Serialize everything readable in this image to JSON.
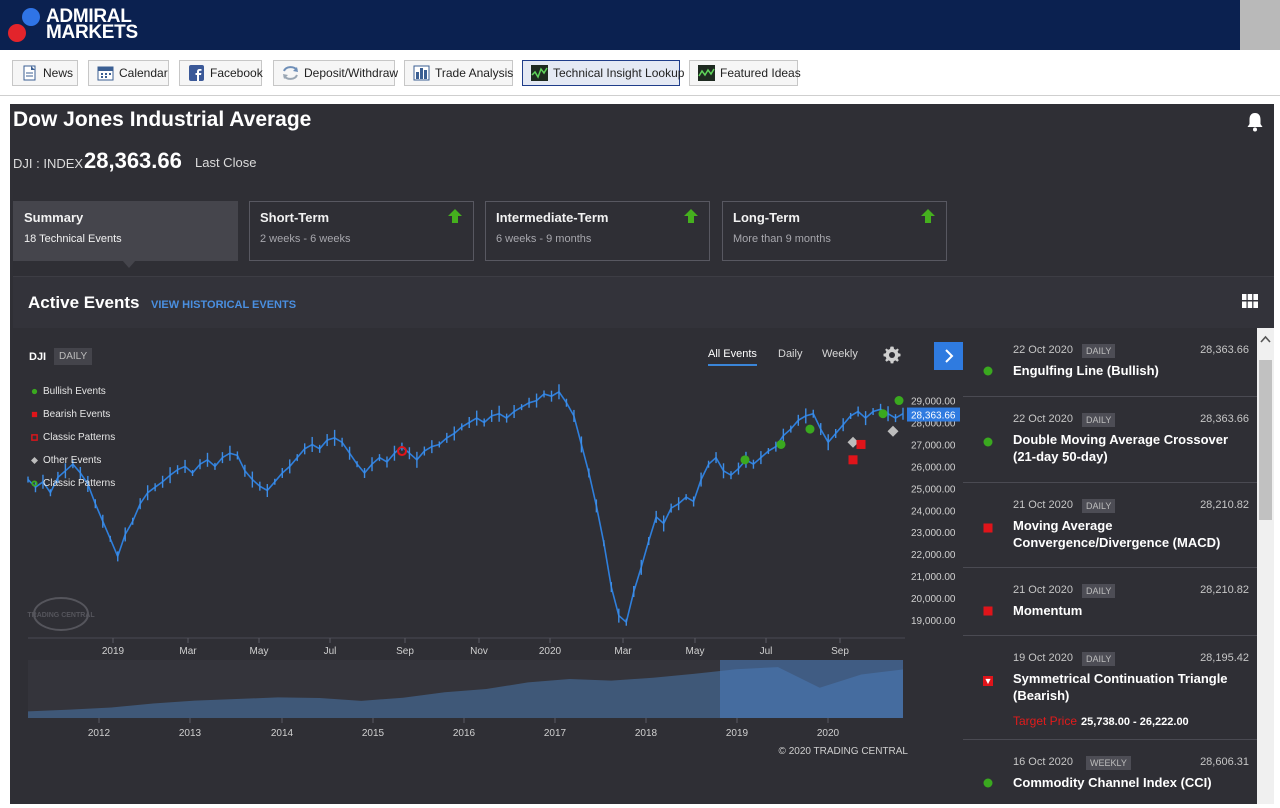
{
  "brand": {
    "line1": "ADMIRAL",
    "line2": "MARKETS",
    "colors": {
      "bar": "#0b2150",
      "dot_blue": "#2f74e6",
      "dot_red": "#e3242b"
    }
  },
  "toolbar": {
    "buttons": [
      {
        "label": "News",
        "icon": "document-icon"
      },
      {
        "label": "Calendar",
        "icon": "calendar-icon"
      },
      {
        "label": "Facebook",
        "icon": "facebook-icon"
      },
      {
        "label": "Deposit/Withdraw",
        "icon": "transfer-icon"
      },
      {
        "label": "Trade Analysis",
        "icon": "bar-chart-icon"
      },
      {
        "label": "Technical Insight Lookup",
        "icon": "chart-icon",
        "active": true
      },
      {
        "label": "Featured Ideas",
        "icon": "chart-icon"
      }
    ]
  },
  "instrument": {
    "title": "Dow Jones Industrial Average",
    "ticker": "DJI : INDEX",
    "price": "28,363.66",
    "price_label": "Last Close"
  },
  "tabs": [
    {
      "name": "Summary",
      "sub": "18 Technical Events",
      "selected": true
    },
    {
      "name": "Short-Term",
      "sub": "2 weeks - 6 weeks",
      "trend": "up"
    },
    {
      "name": "Intermediate-Term",
      "sub": "6 weeks - 9 months",
      "trend": "up"
    },
    {
      "name": "Long-Term",
      "sub": "More than 9 months",
      "trend": "up"
    }
  ],
  "events_header": {
    "title": "Active Events",
    "link": "VIEW HISTORICAL EVENTS"
  },
  "chart_controls": {
    "symbol": "DJI",
    "interval": "DAILY",
    "periods": [
      "All Events",
      "Daily",
      "Weekly"
    ],
    "active_period": "All Events"
  },
  "legend": [
    {
      "label": "Bullish Events",
      "shape": "circle",
      "color": "#3aa91f"
    },
    {
      "label": "Bearish Events",
      "shape": "square",
      "color": "#e0141a"
    },
    {
      "label": "Classic Patterns",
      "shape": "square-outline",
      "color": "#e0141a"
    },
    {
      "label": "Other Events",
      "shape": "diamond",
      "color": "#bdbdbd"
    },
    {
      "label": "Classic Patterns",
      "shape": "circle-outline",
      "color": "#3aa91f"
    }
  ],
  "chart_data": {
    "type": "line",
    "title": "",
    "xlabel": "",
    "ylabel": "",
    "y_ticks": [
      "29,000.00",
      "28,000.00",
      "27,000.00",
      "26,000.00",
      "25,000.00",
      "24,000.00",
      "23,000.00",
      "22,000.00",
      "21,000.00",
      "20,000.00",
      "19,000.00"
    ],
    "ylim": [
      18500,
      29800
    ],
    "x_ticks": [
      "2019",
      "Mar",
      "May",
      "Jul",
      "Sep",
      "Nov",
      "2020",
      "Mar",
      "May",
      "Jul",
      "Sep"
    ],
    "last_price_label": "28,363.66",
    "series": [
      {
        "values": [
          25400,
          25050,
          25300,
          24800,
          25500,
          25800,
          26100,
          25700,
          25200,
          24300,
          23500,
          22700,
          21900,
          22900,
          23500,
          24300,
          24800,
          25050,
          25300,
          25600,
          25850,
          26000,
          25700,
          26100,
          26300,
          26000,
          26400,
          26600,
          26500,
          25800,
          25400,
          25100,
          24900,
          25300,
          25700,
          26000,
          26400,
          26800,
          27000,
          26800,
          27200,
          27300,
          27100,
          26600,
          26100,
          25700,
          26100,
          26400,
          26200,
          26600,
          26900,
          26600,
          26300,
          26700,
          26900,
          27000,
          27300,
          27500,
          27800,
          28000,
          28200,
          28000,
          28300,
          28400,
          28200,
          28500,
          28700,
          28900,
          29000,
          29300,
          29200,
          29400,
          28900,
          28300,
          27000,
          25700,
          24200,
          22500,
          20500,
          19200,
          18900,
          20300,
          21400,
          22600,
          23700,
          23400,
          24100,
          24300,
          24600,
          24400,
          25400,
          26100,
          26400,
          25800,
          25600,
          25900,
          26300,
          26100,
          26400,
          26700,
          26900,
          27400,
          27700,
          28100,
          28300,
          28400,
          27700,
          27100,
          27500,
          27900,
          28300,
          28500,
          28200,
          28500,
          28600,
          28400,
          28200,
          28400
        ]
      }
    ],
    "events": [
      {
        "type": "Classic Patterns",
        "date": "Sep 2019",
        "value": 26700
      },
      {
        "type": "Bullish Events",
        "date": "Jun 2020",
        "value": 26300
      },
      {
        "type": "Bullish Events",
        "date": "Jul 2020",
        "value": 27000
      },
      {
        "type": "Bullish Events",
        "date": "Aug 2020",
        "value": 27700
      },
      {
        "type": "Bearish Events",
        "date": "Sep 2020",
        "value": 26300
      },
      {
        "type": "Other Events",
        "date": "Sep 2020",
        "value": 27100
      },
      {
        "type": "Bearish Events",
        "date": "Oct 2020",
        "value": 27000
      },
      {
        "type": "Other Events",
        "date": "Oct 2020",
        "value": 27600
      },
      {
        "type": "Bullish Events",
        "date": "Oct 2020",
        "value": 28400
      },
      {
        "type": "Bullish Events",
        "date": "Oct 2020",
        "value": 29000
      }
    ],
    "navigator_x_ticks": [
      "2012",
      "2013",
      "2014",
      "2015",
      "2016",
      "2017",
      "2018",
      "2019",
      "2020"
    ],
    "navigator_values": [
      12500,
      13200,
      14000,
      15500,
      16600,
      17200,
      17800,
      17600,
      16500,
      17700,
      19800,
      21000,
      23500,
      24800,
      24200,
      25300,
      26800,
      28500,
      29300,
      21500,
      26500,
      28400
    ]
  },
  "copyright": "© 2020 TRADING CENTRAL",
  "watermark": "TRADING CENTRAL",
  "event_list": [
    {
      "date": "22 Oct 2020",
      "freq": "DAILY",
      "value": "28,363.66",
      "name": "Engulfing Line (Bullish)",
      "marker": "circle",
      "color": "#3aa91f"
    },
    {
      "date": "22 Oct 2020",
      "freq": "DAILY",
      "value": "28,363.66",
      "name": "Double Moving Average Crossover (21-day 50-day)",
      "marker": "circle",
      "color": "#3aa91f"
    },
    {
      "date": "21 Oct 2020",
      "freq": "DAILY",
      "value": "28,210.82",
      "name": "Moving Average Convergence/Divergence (MACD)",
      "marker": "square",
      "color": "#e0141a"
    },
    {
      "date": "21 Oct 2020",
      "freq": "DAILY",
      "value": "28,210.82",
      "name": "Momentum",
      "marker": "square",
      "color": "#e0141a"
    },
    {
      "date": "19 Oct 2020",
      "freq": "DAILY",
      "value": "28,195.42",
      "name": "Symmetrical Continuation Triangle (Bearish)",
      "marker": "triangle-down",
      "color": "#e0141a",
      "target_label": "Target Price",
      "target_value": "25,738.00 - 26,222.00"
    },
    {
      "date": "16 Oct 2020",
      "freq": "WEEKLY",
      "value": "28,606.31",
      "name": "Commodity Channel Index (CCI)",
      "marker": "circle",
      "color": "#3aa91f"
    }
  ]
}
